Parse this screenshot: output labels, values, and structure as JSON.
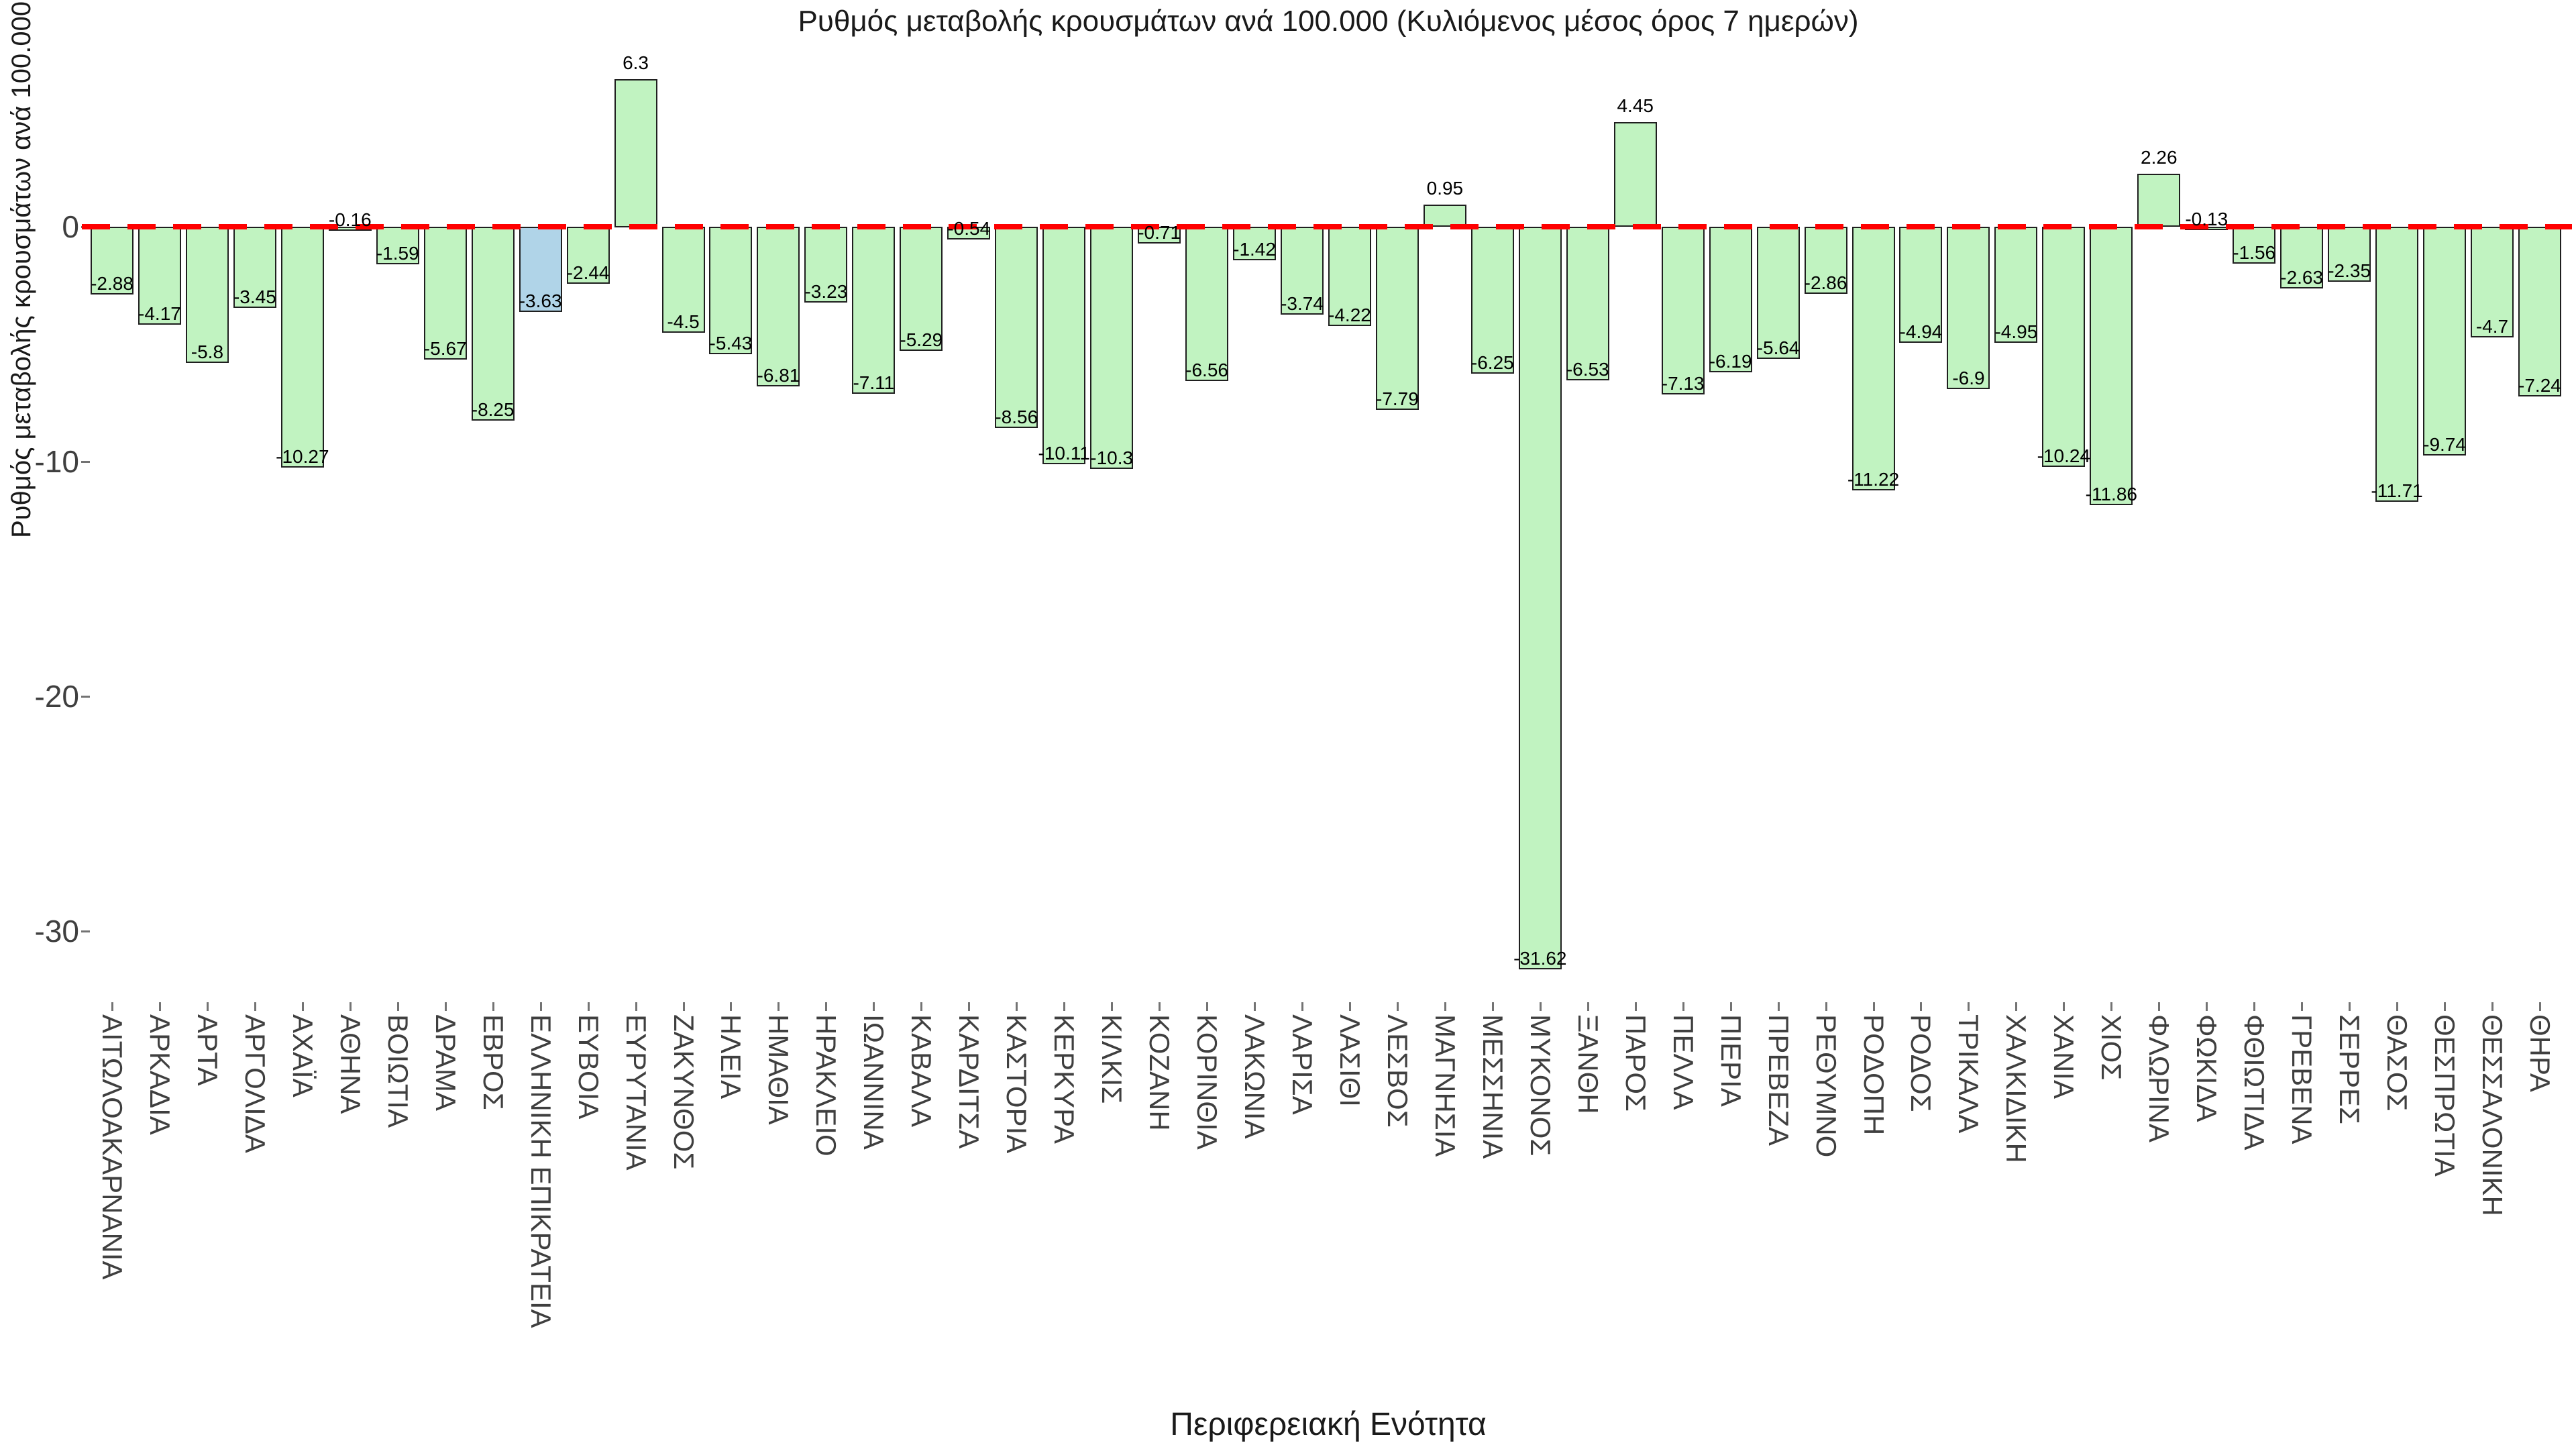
{
  "chart_data": {
    "type": "bar",
    "title": "Ρυθμός μεταβολής κρουσμάτων ανά 100.000 (Κυλιόμενος μέσος όρος 7 ημερών)",
    "xlabel": "Περιφερειακή Ενότητα",
    "ylabel": "Ρυθμός μεταβολής κρουσμάτων ανά 100.000 (Κυλιόμενος μέσος όρος 7 ημερών)",
    "yticks": [
      0,
      -10,
      -20,
      -30
    ],
    "ylim": [
      -33.5,
      7.5
    ],
    "grid": false,
    "legend": false,
    "zero_line": {
      "style": "dashed",
      "color": "#ff0000"
    },
    "highlight_category": "ΕΛΛΗΝΙΚΗ ΕΠΙΚΡΑΤΕΙΑ",
    "colors": {
      "bar_fill": "#c1f3c1",
      "highlight_fill": "#b0d4e8",
      "bar_border": "#1f1f1f",
      "zero_line": "#ff0000",
      "tick_text": "#3f3f3f",
      "value_text": "#000000"
    },
    "categories": [
      "ΑΙΤΩΛΟΑΚΑΡΝΑΝΙΑ",
      "ΑΡΚΑΔΙΑ",
      "ΑΡΤΑ",
      "ΑΡΓΟΛΙΔΑ",
      "ΑΧΑΪΑ",
      "ΑΘΗΝΑ",
      "ΒΟΙΩΤΙΑ",
      "ΔΡΑΜΑ",
      "ΕΒΡΟΣ",
      "ΕΛΛΗΝΙΚΗ ΕΠΙΚΡΑΤΕΙΑ",
      "ΕΥΒΟΙΑ",
      "ΕΥΡΥΤΑΝΙΑ",
      "ΖΑΚΥΝΘΟΣ",
      "ΗΛΕΙΑ",
      "ΗΜΑΘΙΑ",
      "ΗΡΑΚΛΕΙΟ",
      "ΙΩΑΝΝΙΝΑ",
      "ΚΑΒΑΛΑ",
      "ΚΑΡΔΙΤΣΑ",
      "ΚΑΣΤΟΡΙΑ",
      "ΚΕΡΚΥΡΑ",
      "ΚΙΛΚΙΣ",
      "ΚΟΖΑΝΗ",
      "ΚΟΡΙΝΘΙΑ",
      "ΛΑΚΩΝΙΑ",
      "ΛΑΡΙΣΑ",
      "ΛΑΣΙΘΙ",
      "ΛΕΣΒΟΣ",
      "ΜΑΓΝΗΣΙΑ",
      "ΜΕΣΣΗΝΙΑ",
      "ΜΥΚΟΝΟΣ",
      "ΞΑΝΘΗ",
      "ΠΑΡΟΣ",
      "ΠΕΛΛΑ",
      "ΠΙΕΡΙΑ",
      "ΠΡΕΒΕΖΑ",
      "ΡΕΘΥΜΝΟ",
      "ΡΟΔΟΠΗ",
      "ΡΟΔΟΣ",
      "ΤΡΙΚΑΛΑ",
      "ΧΑΛΚΙΔΙΚΗ",
      "ΧΑΝΙΑ",
      "ΧΙΟΣ",
      "ΦΛΩΡΙΝΑ",
      "ΦΩΚΙΔΑ",
      "ΦΘΙΩΤΙΔΑ",
      "ΓΡΕΒΕΝΑ",
      "ΣΕΡΡΕΣ",
      "ΘΑΣΟΣ",
      "ΘΕΣΠΡΩΤΙΑ",
      "ΘΕΣΣΑΛΟΝΙΚΗ",
      "ΘΗΡΑ"
    ],
    "values": [
      -2.88,
      -4.17,
      -5.8,
      -3.45,
      -10.27,
      -0.16,
      -1.59,
      -5.67,
      -8.25,
      -3.63,
      -2.44,
      6.3,
      -4.5,
      -5.43,
      -6.81,
      -3.23,
      -7.11,
      -5.29,
      -0.54,
      -8.56,
      -10.11,
      -10.3,
      -0.71,
      -6.56,
      -1.42,
      -3.74,
      -4.22,
      -7.79,
      0.95,
      -6.25,
      -31.62,
      -6.53,
      4.45,
      -7.13,
      -6.19,
      -5.64,
      -2.86,
      -11.22,
      -4.94,
      -6.9,
      -4.95,
      -10.24,
      -11.86,
      2.26,
      -0.13,
      -1.56,
      -2.63,
      -2.35,
      -11.71,
      -9.74,
      -4.7,
      -7.24
    ]
  }
}
